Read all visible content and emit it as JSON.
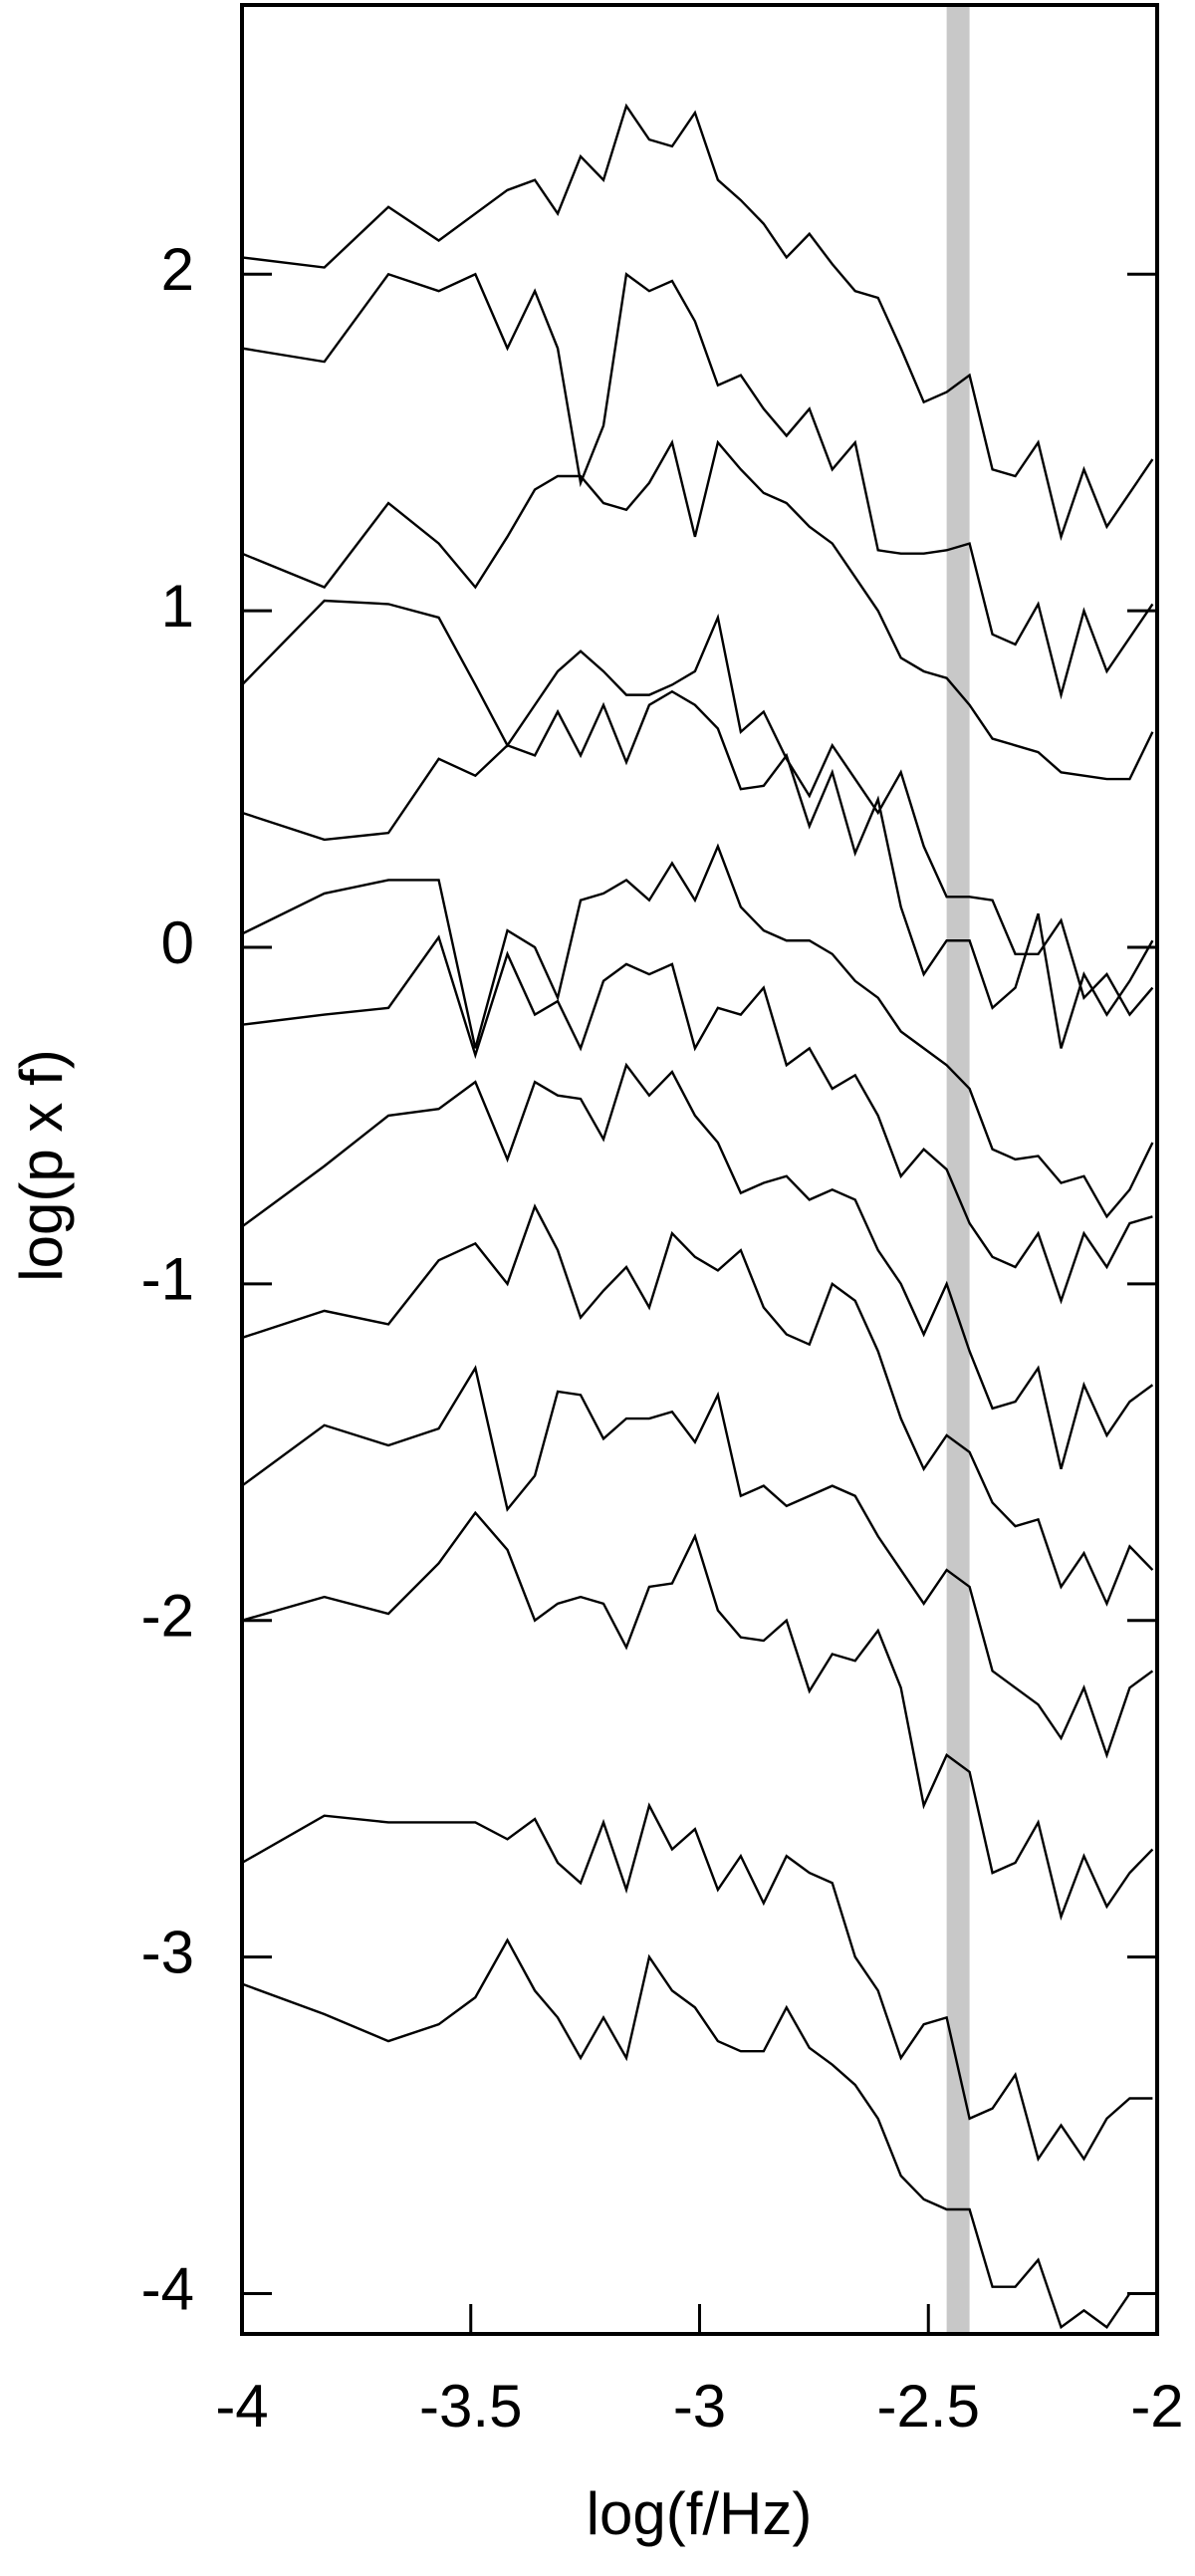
{
  "chart_data": {
    "type": "line",
    "x_label": "log(f/Hz)",
    "y_label": "log(p x f)",
    "xlim": [
      -4,
      -2
    ],
    "ylim": [
      -4.12,
      2.8
    ],
    "xticks": [
      -4,
      -3.5,
      -3,
      -2.5,
      -2
    ],
    "yticks": [
      -4,
      -3,
      -2,
      -1,
      0,
      1,
      2
    ],
    "shaded_band": {
      "xmin": -2.46,
      "xmax": -2.41,
      "color": "#c8c8c8"
    },
    "x": [
      -4,
      -3.82,
      -3.68,
      -3.57,
      -3.49,
      -3.42,
      -3.36,
      -3.31,
      -3.26,
      -3.21,
      -3.16,
      -3.11,
      -3.06,
      -3.01,
      -2.96,
      -2.91,
      -2.86,
      -2.81,
      -2.76,
      -2.71,
      -2.66,
      -2.61,
      -2.56,
      -2.51,
      -2.46,
      -2.41,
      -2.36,
      -2.31,
      -2.26,
      -2.21,
      -2.16,
      -2.11,
      -2.06,
      -2.01
    ],
    "series": [
      {
        "color": "#000000",
        "values": [
          2.05,
          2.02,
          2.2,
          2.1,
          2.18,
          2.25,
          2.28,
          2.18,
          2.35,
          2.28,
          2.5,
          2.4,
          2.38,
          2.48,
          2.28,
          2.22,
          2.15,
          2.05,
          2.12,
          2.03,
          1.95,
          1.93,
          1.78,
          1.62,
          1.65,
          1.7,
          1.42,
          1.4,
          1.5,
          1.22,
          1.42,
          1.25,
          1.35,
          1.45
        ]
      },
      {
        "color": "#000000",
        "values": [
          1.78,
          1.74,
          2.0,
          1.95,
          2.0,
          1.78,
          1.95,
          1.78,
          1.38,
          1.55,
          2.0,
          1.95,
          1.98,
          1.86,
          1.67,
          1.7,
          1.6,
          1.52,
          1.6,
          1.42,
          1.5,
          1.18,
          1.17,
          1.17,
          1.18,
          1.2,
          0.93,
          0.9,
          1.02,
          0.75,
          1.0,
          0.82,
          0.92,
          1.02
        ]
      },
      {
        "color": "#000000",
        "values": [
          1.17,
          1.07,
          1.32,
          1.2,
          1.07,
          1.22,
          1.36,
          1.4,
          1.4,
          1.32,
          1.3,
          1.38,
          1.5,
          1.22,
          1.5,
          1.42,
          1.35,
          1.32,
          1.25,
          1.2,
          1.1,
          1.0,
          0.86,
          0.82,
          0.8,
          0.72,
          0.62,
          0.6,
          0.58,
          0.52,
          0.51,
          0.5,
          0.5,
          0.64
        ]
      },
      {
        "color": "#000000",
        "values": [
          0.78,
          1.03,
          1.02,
          0.98,
          0.78,
          0.6,
          0.72,
          0.82,
          0.88,
          0.82,
          0.75,
          0.75,
          0.78,
          0.82,
          0.98,
          0.64,
          0.7,
          0.56,
          0.45,
          0.6,
          0.5,
          0.4,
          0.52,
          0.3,
          0.15,
          0.15,
          0.14,
          -0.02,
          -0.02,
          0.08,
          -0.15,
          -0.08,
          -0.2,
          -0.12
        ]
      },
      {
        "color": "#000000",
        "values": [
          0.4,
          0.32,
          0.34,
          0.56,
          0.51,
          0.6,
          0.57,
          0.7,
          0.57,
          0.72,
          0.55,
          0.72,
          0.76,
          0.72,
          0.65,
          0.47,
          0.48,
          0.57,
          0.36,
          0.52,
          0.28,
          0.44,
          0.12,
          -0.08,
          0.02,
          0.02,
          -0.18,
          -0.12,
          0.1,
          -0.3,
          -0.08,
          -0.2,
          -0.1,
          0.02
        ]
      },
      {
        "color": "#000000",
        "values": [
          0.04,
          0.16,
          0.2,
          0.2,
          -0.3,
          0.05,
          0.0,
          -0.15,
          0.14,
          0.16,
          0.2,
          0.14,
          0.25,
          0.14,
          0.3,
          0.12,
          0.05,
          0.02,
          0.02,
          -0.02,
          -0.1,
          -0.15,
          -0.25,
          -0.3,
          -0.35,
          -0.42,
          -0.6,
          -0.63,
          -0.62,
          -0.7,
          -0.68,
          -0.8,
          -0.72,
          -0.58
        ]
      },
      {
        "color": "#000000",
        "values": [
          -0.23,
          -0.2,
          -0.18,
          0.03,
          -0.32,
          -0.02,
          -0.2,
          -0.16,
          -0.3,
          -0.1,
          -0.05,
          -0.08,
          -0.05,
          -0.3,
          -0.18,
          -0.2,
          -0.12,
          -0.35,
          -0.3,
          -0.42,
          -0.38,
          -0.5,
          -0.68,
          -0.6,
          -0.66,
          -0.82,
          -0.92,
          -0.95,
          -0.85,
          -1.05,
          -0.85,
          -0.95,
          -0.82,
          -0.8
        ]
      },
      {
        "color": "#000000",
        "values": [
          -0.83,
          -0.65,
          -0.5,
          -0.48,
          -0.4,
          -0.63,
          -0.4,
          -0.44,
          -0.45,
          -0.57,
          -0.35,
          -0.44,
          -0.37,
          -0.5,
          -0.58,
          -0.73,
          -0.7,
          -0.68,
          -0.75,
          -0.72,
          -0.75,
          -0.9,
          -1.0,
          -1.15,
          -1.0,
          -1.2,
          -1.37,
          -1.35,
          -1.25,
          -1.55,
          -1.3,
          -1.45,
          -1.35,
          -1.3
        ]
      },
      {
        "color": "#000000",
        "values": [
          -1.16,
          -1.08,
          -1.12,
          -0.93,
          -0.88,
          -1.0,
          -0.77,
          -0.9,
          -1.1,
          -1.02,
          -0.95,
          -1.07,
          -0.85,
          -0.92,
          -0.96,
          -0.9,
          -1.07,
          -1.15,
          -1.18,
          -1.0,
          -1.05,
          -1.2,
          -1.4,
          -1.55,
          -1.45,
          -1.5,
          -1.65,
          -1.72,
          -1.7,
          -1.9,
          -1.8,
          -1.95,
          -1.78,
          -1.85
        ]
      },
      {
        "color": "#000000",
        "values": [
          -1.6,
          -1.42,
          -1.48,
          -1.43,
          -1.25,
          -1.67,
          -1.57,
          -1.32,
          -1.33,
          -1.46,
          -1.4,
          -1.4,
          -1.38,
          -1.47,
          -1.33,
          -1.63,
          -1.6,
          -1.66,
          -1.63,
          -1.6,
          -1.63,
          -1.75,
          -1.85,
          -1.95,
          -1.85,
          -1.9,
          -2.15,
          -2.2,
          -2.25,
          -2.35,
          -2.2,
          -2.4,
          -2.2,
          -2.15
        ]
      },
      {
        "color": "#000000",
        "values": [
          -2.0,
          -1.93,
          -1.98,
          -1.83,
          -1.68,
          -1.79,
          -2.0,
          -1.95,
          -1.93,
          -1.95,
          -2.08,
          -1.9,
          -1.89,
          -1.75,
          -1.97,
          -2.05,
          -2.06,
          -2.0,
          -2.21,
          -2.1,
          -2.12,
          -2.03,
          -2.2,
          -2.55,
          -2.4,
          -2.45,
          -2.75,
          -2.72,
          -2.6,
          -2.88,
          -2.7,
          -2.85,
          -2.75,
          -2.68
        ]
      },
      {
        "color": "#000000",
        "values": [
          -2.72,
          -2.58,
          -2.6,
          -2.6,
          -2.6,
          -2.65,
          -2.59,
          -2.72,
          -2.78,
          -2.6,
          -2.8,
          -2.55,
          -2.68,
          -2.62,
          -2.8,
          -2.7,
          -2.84,
          -2.7,
          -2.75,
          -2.78,
          -3.0,
          -3.1,
          -3.3,
          -3.2,
          -3.18,
          -3.48,
          -3.45,
          -3.35,
          -3.6,
          -3.5,
          -3.6,
          -3.48,
          -3.42,
          -3.42
        ]
      },
      {
        "color": "#000000",
        "values": [
          -3.08,
          -3.17,
          -3.25,
          -3.2,
          -3.12,
          -2.95,
          -3.1,
          -3.18,
          -3.3,
          -3.18,
          -3.3,
          -3.0,
          -3.1,
          -3.15,
          -3.25,
          -3.28,
          -3.28,
          -3.15,
          -3.27,
          -3.32,
          -3.38,
          -3.48,
          -3.65,
          -3.72,
          -3.75,
          -3.75,
          -3.98,
          -3.98,
          -3.9,
          -4.1,
          -4.05,
          -4.1,
          -4.0,
          -4.0
        ]
      }
    ]
  }
}
